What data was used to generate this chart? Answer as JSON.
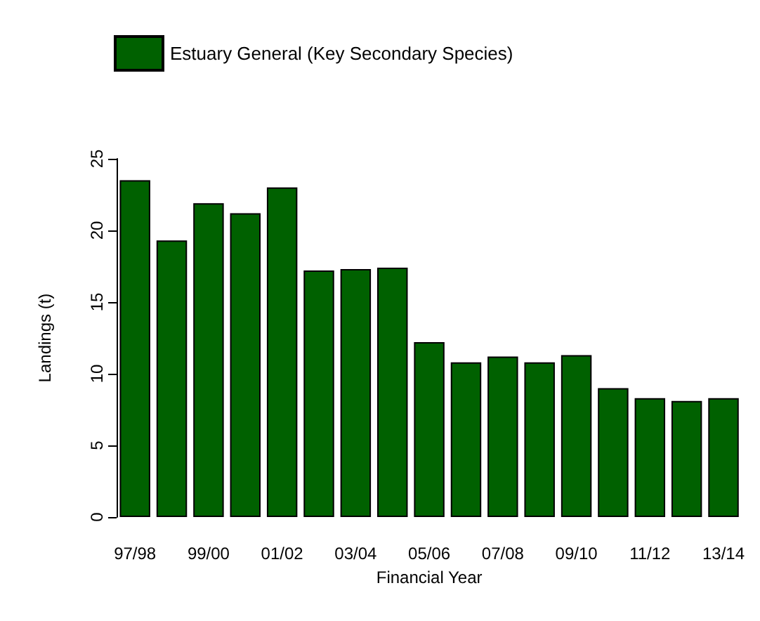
{
  "chart_data": {
    "type": "bar",
    "xlabel": "Financial Year",
    "ylabel": "Landings (t)",
    "categories": [
      "97/98",
      null,
      "99/00",
      null,
      "01/02",
      null,
      "03/04",
      null,
      "05/06",
      null,
      "07/08",
      null,
      "09/10",
      null,
      "11/12",
      null,
      "13/14"
    ],
    "series": [
      {
        "name": "Estuary General (Key Secondary Species)",
        "color": "#006100",
        "values": [
          23.5,
          19.3,
          21.9,
          21.2,
          23.0,
          17.2,
          17.3,
          17.4,
          12.2,
          10.8,
          11.2,
          10.8,
          11.3,
          9.0,
          8.3,
          8.1,
          8.3
        ]
      }
    ],
    "ylim": [
      0,
      25
    ],
    "yticks": [
      0,
      5,
      10,
      15,
      20,
      25
    ],
    "grid": false,
    "legend": "top left"
  }
}
